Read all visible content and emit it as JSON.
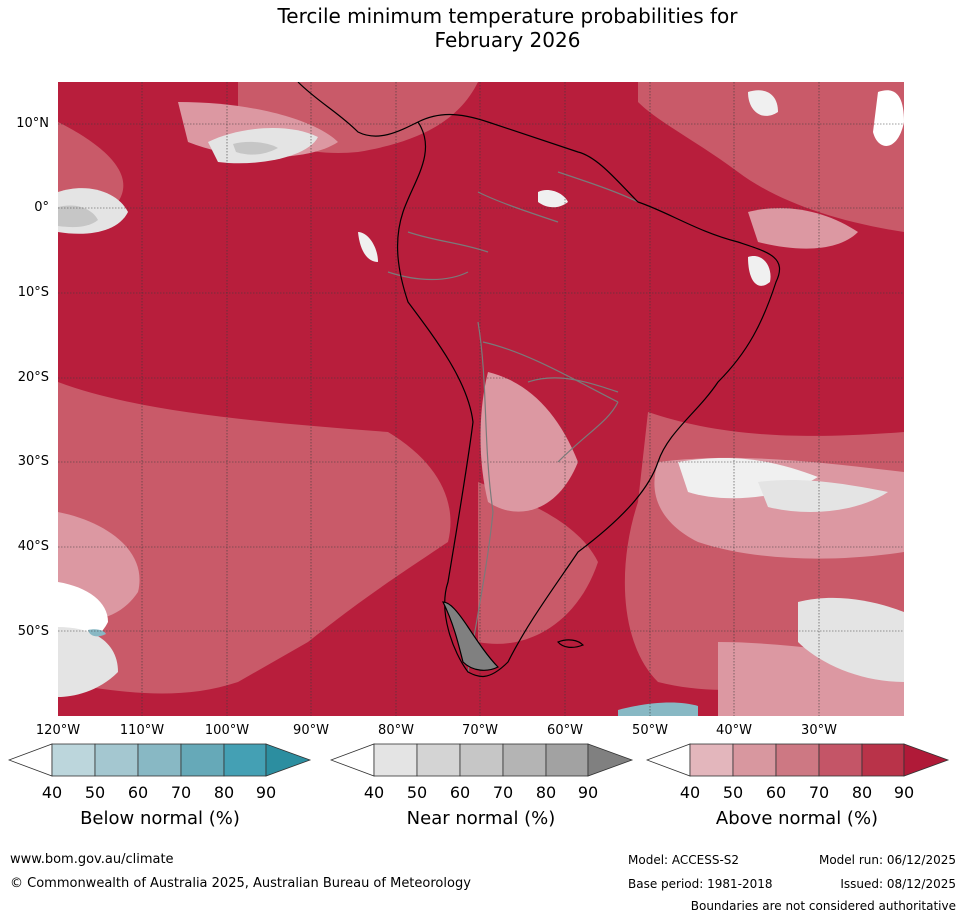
{
  "title_line1": "Tercile minimum temperature probabilities for",
  "title_line2": "February 2026",
  "lat_labels": [
    "10°N",
    "0°",
    "10°S",
    "20°S",
    "30°S",
    "40°S",
    "50°S"
  ],
  "lon_labels": [
    "120°W",
    "110°W",
    "100°W",
    "90°W",
    "80°W",
    "70°W",
    "60°W",
    "50°W",
    "40°W",
    "30°W"
  ],
  "colorbars": [
    {
      "label": "Below normal (%)",
      "ticks": [
        "40",
        "50",
        "60",
        "70",
        "80",
        "90"
      ],
      "colors": [
        "#ffffff",
        "#bcd6dc",
        "#a4c7d0",
        "#88b8c4",
        "#66a9b8",
        "#44a0b4",
        "#2c8ea0"
      ]
    },
    {
      "label": "Near normal (%)",
      "ticks": [
        "40",
        "50",
        "60",
        "70",
        "80",
        "90"
      ],
      "colors": [
        "#ffffff",
        "#e4e4e4",
        "#d4d4d4",
        "#c6c6c6",
        "#b4b4b4",
        "#a2a2a2",
        "#808080"
      ]
    },
    {
      "label": "Above normal (%)",
      "ticks": [
        "40",
        "50",
        "60",
        "70",
        "80",
        "90"
      ],
      "colors": [
        "#ffffff",
        "#e3b6bc",
        "#d8979f",
        "#cd7883",
        "#c45567",
        "#b93349",
        "#b01a38"
      ]
    }
  ],
  "footer": {
    "website": "www.bom.gov.au/climate",
    "copyright": "© Commonwealth of Australia 2025, Australian Bureau of Meteorology",
    "model": "Model: ACCESS-S2",
    "model_run": "Model run: 06/12/2025",
    "base_period": "Base period: 1981-2018",
    "issued": "Issued: 08/12/2025",
    "disclaimer": "Boundaries are not considered authoritative"
  }
}
